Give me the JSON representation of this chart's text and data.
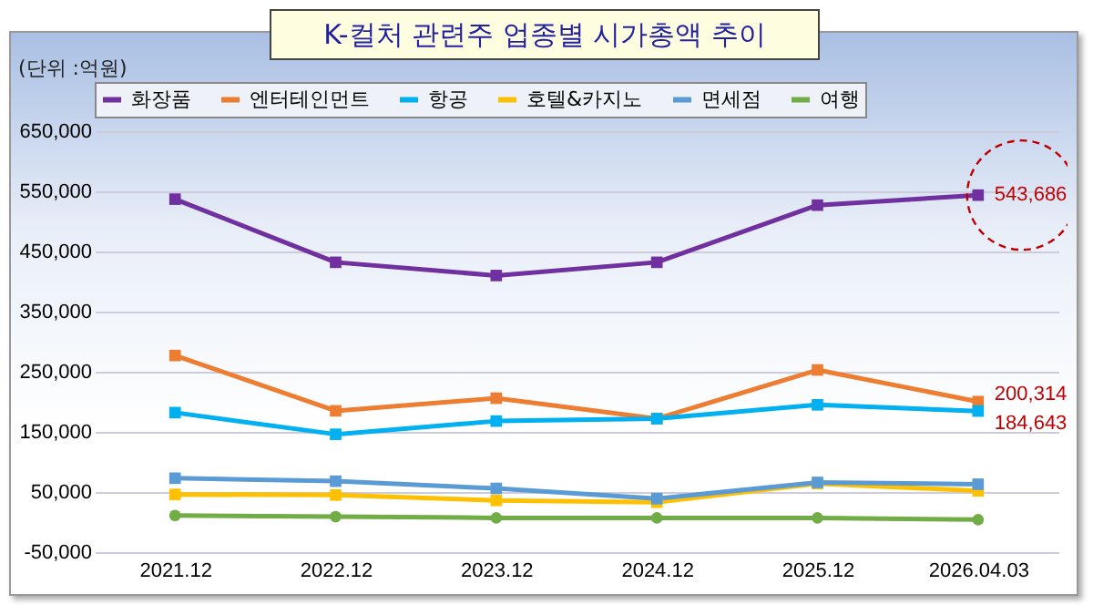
{
  "chart_data": {
    "type": "line",
    "title": "K-컬처 관련주 업종별 시가총액 추이",
    "annotations": [
      "(단위 :억원)"
    ],
    "categories": [
      "2021.12",
      "2022.12",
      "2023.12",
      "2024.12",
      "2025.12",
      "2026.04.03"
    ],
    "ylim": [
      -50000,
      650000
    ],
    "yticks": [
      {
        "value": -50000,
        "label": "-50,000"
      },
      {
        "value": 50000,
        "label": "50,000"
      },
      {
        "value": 150000,
        "label": "150,000"
      },
      {
        "value": 250000,
        "label": "250,000"
      },
      {
        "value": 350000,
        "label": "350,000"
      },
      {
        "value": 450000,
        "label": "450,000"
      },
      {
        "value": 550000,
        "label": "550,000"
      },
      {
        "value": 650000,
        "label": "650,000"
      }
    ],
    "grid": "y",
    "legend": "top",
    "marker": "square",
    "series": [
      {
        "name": "화장품",
        "color": "#7030a0",
        "values": [
          537000,
          432000,
          410000,
          432000,
          527000,
          543686
        ],
        "value_labels": [
          null,
          null,
          null,
          null,
          null,
          "543,686"
        ]
      },
      {
        "name": "엔터테인먼트",
        "color": "#ed7d31",
        "values": [
          277000,
          185000,
          206000,
          172000,
          253000,
          200314
        ],
        "value_labels": [
          null,
          null,
          null,
          null,
          null,
          "200,314"
        ]
      },
      {
        "name": "항공",
        "color": "#00b0f0",
        "values": [
          182000,
          146000,
          168000,
          172000,
          195000,
          184643
        ],
        "value_labels": [
          null,
          null,
          null,
          null,
          null,
          "184,643"
        ]
      },
      {
        "name": "호텔&카지노",
        "color": "#ffc000",
        "values": [
          46000,
          45000,
          36000,
          33000,
          64000,
          52000
        ]
      },
      {
        "name": "면세점",
        "color": "#5b9bd5",
        "values": [
          73000,
          68000,
          56000,
          39000,
          66000,
          63000
        ]
      },
      {
        "name": "여행",
        "color": "#70ad47",
        "marker": "circle",
        "values": [
          11000,
          9000,
          7000,
          7000,
          7000,
          4000
        ]
      }
    ]
  }
}
